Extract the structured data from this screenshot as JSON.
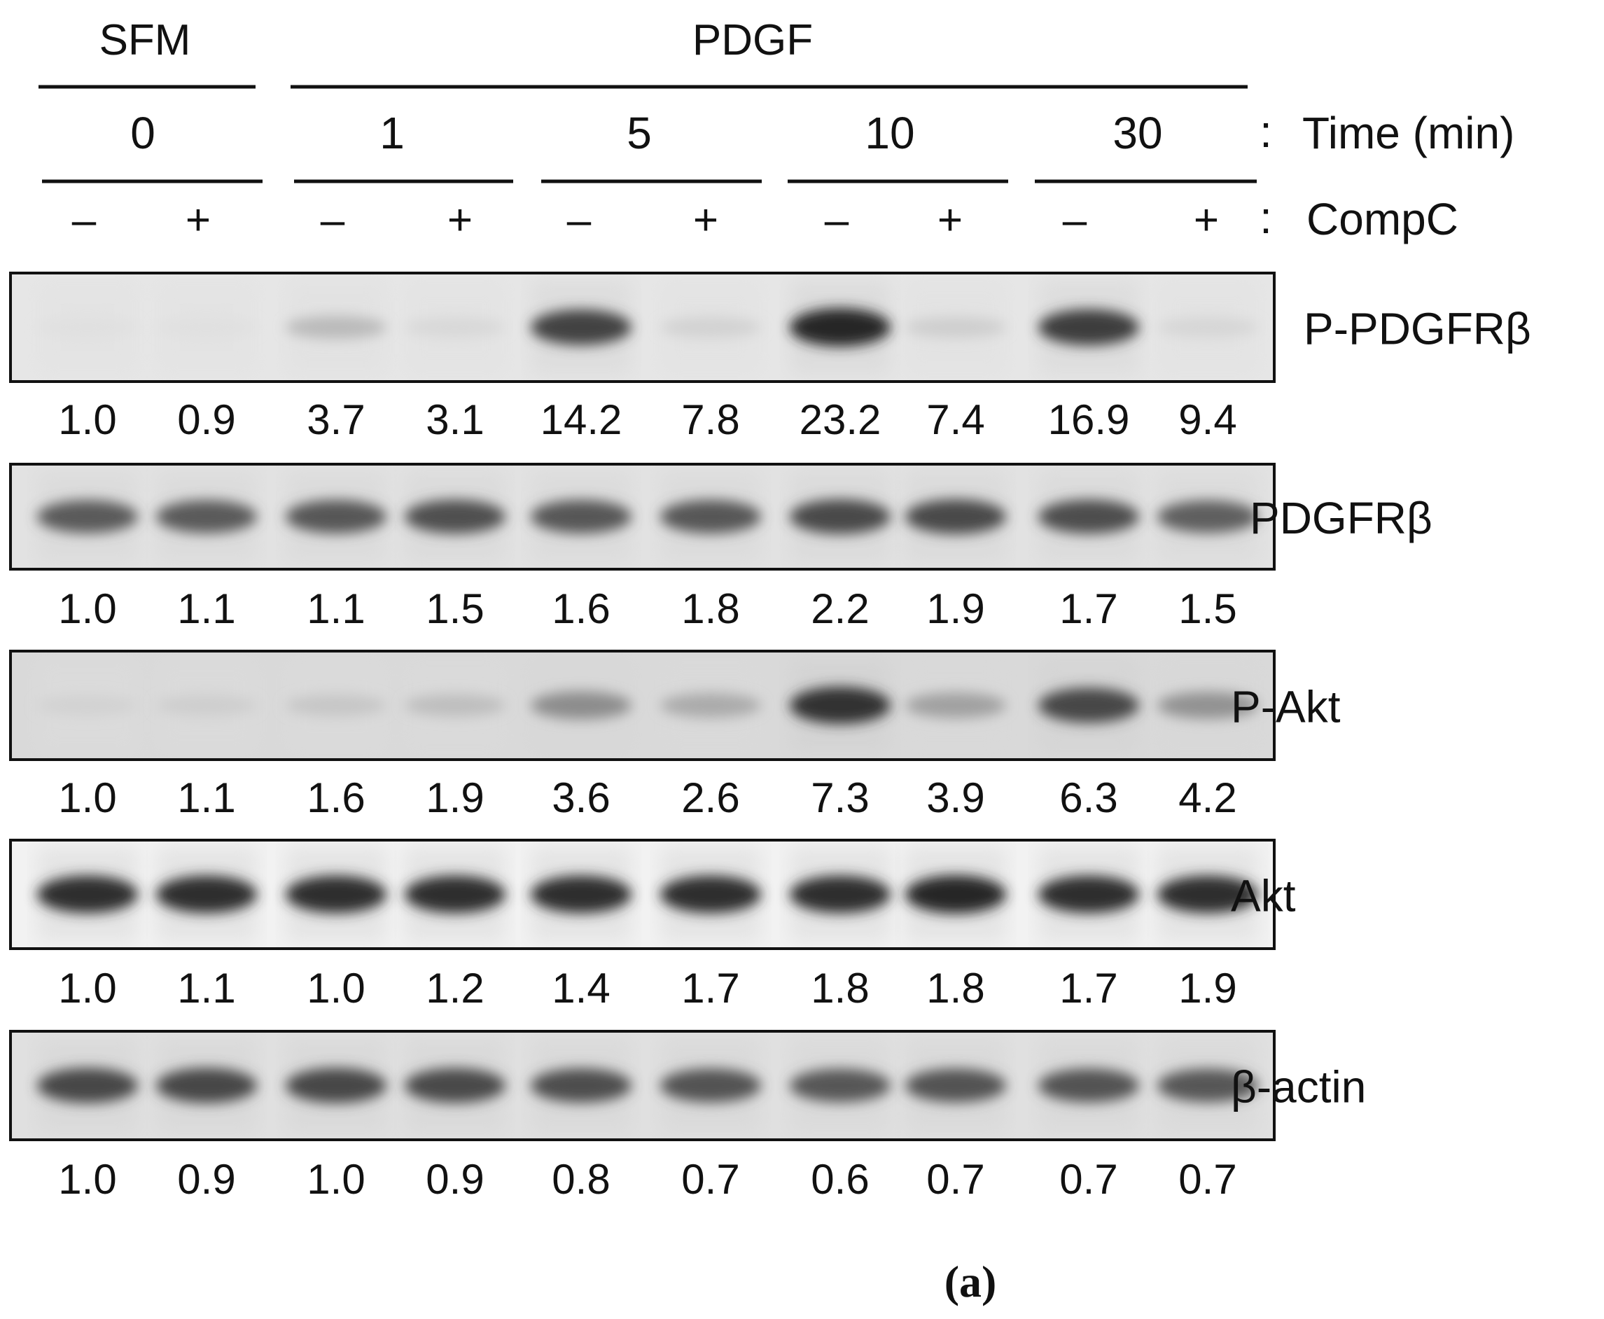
{
  "header": {
    "group_sfm": "SFM",
    "group_pdgf": "PDGF",
    "time_values": [
      "0",
      "1",
      "5",
      "10",
      "30"
    ],
    "time_colon": ":",
    "time_label": "Time (min)",
    "compc_signs": [
      "–",
      "+",
      "–",
      "+",
      "–",
      "+",
      "–",
      "+",
      "–",
      "+"
    ],
    "compc_colon": ":",
    "compc_label": "CompC"
  },
  "blots": [
    {
      "label": "P-PDGFRβ",
      "values": [
        "1.0",
        "0.9",
        "3.7",
        "3.1",
        "14.2",
        "7.8",
        "23.2",
        "7.4",
        "16.9",
        "9.4"
      ],
      "intensity": [
        0.03,
        0.03,
        0.22,
        0.07,
        0.82,
        0.1,
        0.95,
        0.12,
        0.85,
        0.08
      ],
      "background": "#e6e6e6"
    },
    {
      "label": "PDGFRβ",
      "values": [
        "1.0",
        "1.1",
        "1.1",
        "1.5",
        "1.6",
        "1.8",
        "2.2",
        "1.9",
        "1.7",
        "1.5"
      ],
      "intensity": [
        0.7,
        0.7,
        0.72,
        0.75,
        0.72,
        0.72,
        0.78,
        0.78,
        0.76,
        0.68
      ],
      "background": "#e2e2e2"
    },
    {
      "label": "P-Akt",
      "values": [
        "1.0",
        "1.1",
        "1.6",
        "1.9",
        "3.6",
        "2.6",
        "7.3",
        "3.9",
        "6.3",
        "4.2"
      ],
      "intensity": [
        0.1,
        0.12,
        0.16,
        0.2,
        0.45,
        0.3,
        0.9,
        0.35,
        0.8,
        0.42
      ],
      "background": "#d9d9d9"
    },
    {
      "label": "Akt",
      "values": [
        "1.0",
        "1.1",
        "1.0",
        "1.2",
        "1.4",
        "1.7",
        "1.8",
        "1.8",
        "1.7",
        "1.9"
      ],
      "intensity": [
        0.92,
        0.92,
        0.92,
        0.92,
        0.92,
        0.92,
        0.92,
        0.95,
        0.92,
        0.92
      ],
      "background": "#f2f2f2"
    },
    {
      "label": "β-actin",
      "values": [
        "1.0",
        "0.9",
        "1.0",
        "0.9",
        "0.8",
        "0.7",
        "0.6",
        "0.7",
        "0.7",
        "0.7"
      ],
      "intensity": [
        0.8,
        0.8,
        0.8,
        0.78,
        0.76,
        0.74,
        0.72,
        0.74,
        0.74,
        0.72
      ],
      "background": "#e0e0e0"
    }
  ],
  "panel_label": "(a)"
}
